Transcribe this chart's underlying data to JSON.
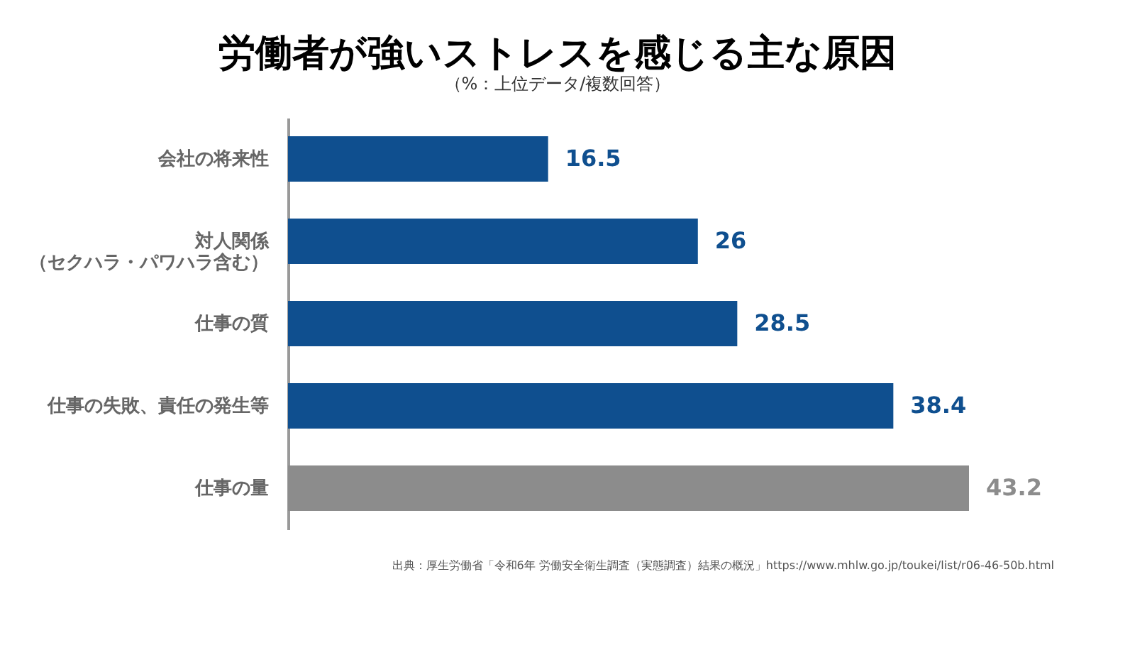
{
  "chart_data": {
    "type": "bar",
    "orientation": "horizontal",
    "title": "労働者が強いストレスを感じる主な原因",
    "subtitle": "（%：上位データ/複数回答）",
    "categories": [
      "会社の将来性",
      "対人関係（セクハラ・パワハラ含む）",
      "仕事の質",
      "仕事の失敗、責任の発生等",
      "仕事の量"
    ],
    "values": [
      16.5,
      26,
      28.5,
      38.4,
      43.2
    ],
    "colors": [
      "#0f4f8f",
      "#0f4f8f",
      "#0f4f8f",
      "#0f4f8f",
      "#8c8c8c"
    ],
    "data_labels": true,
    "annotations": [
      "出典：厚生労働省「令和6年 労働安全衛生調査（実態調査）結果の概況」https://www.mhlw.go.jp/toukei/list/r06-46-50b.html"
    ]
  }
}
